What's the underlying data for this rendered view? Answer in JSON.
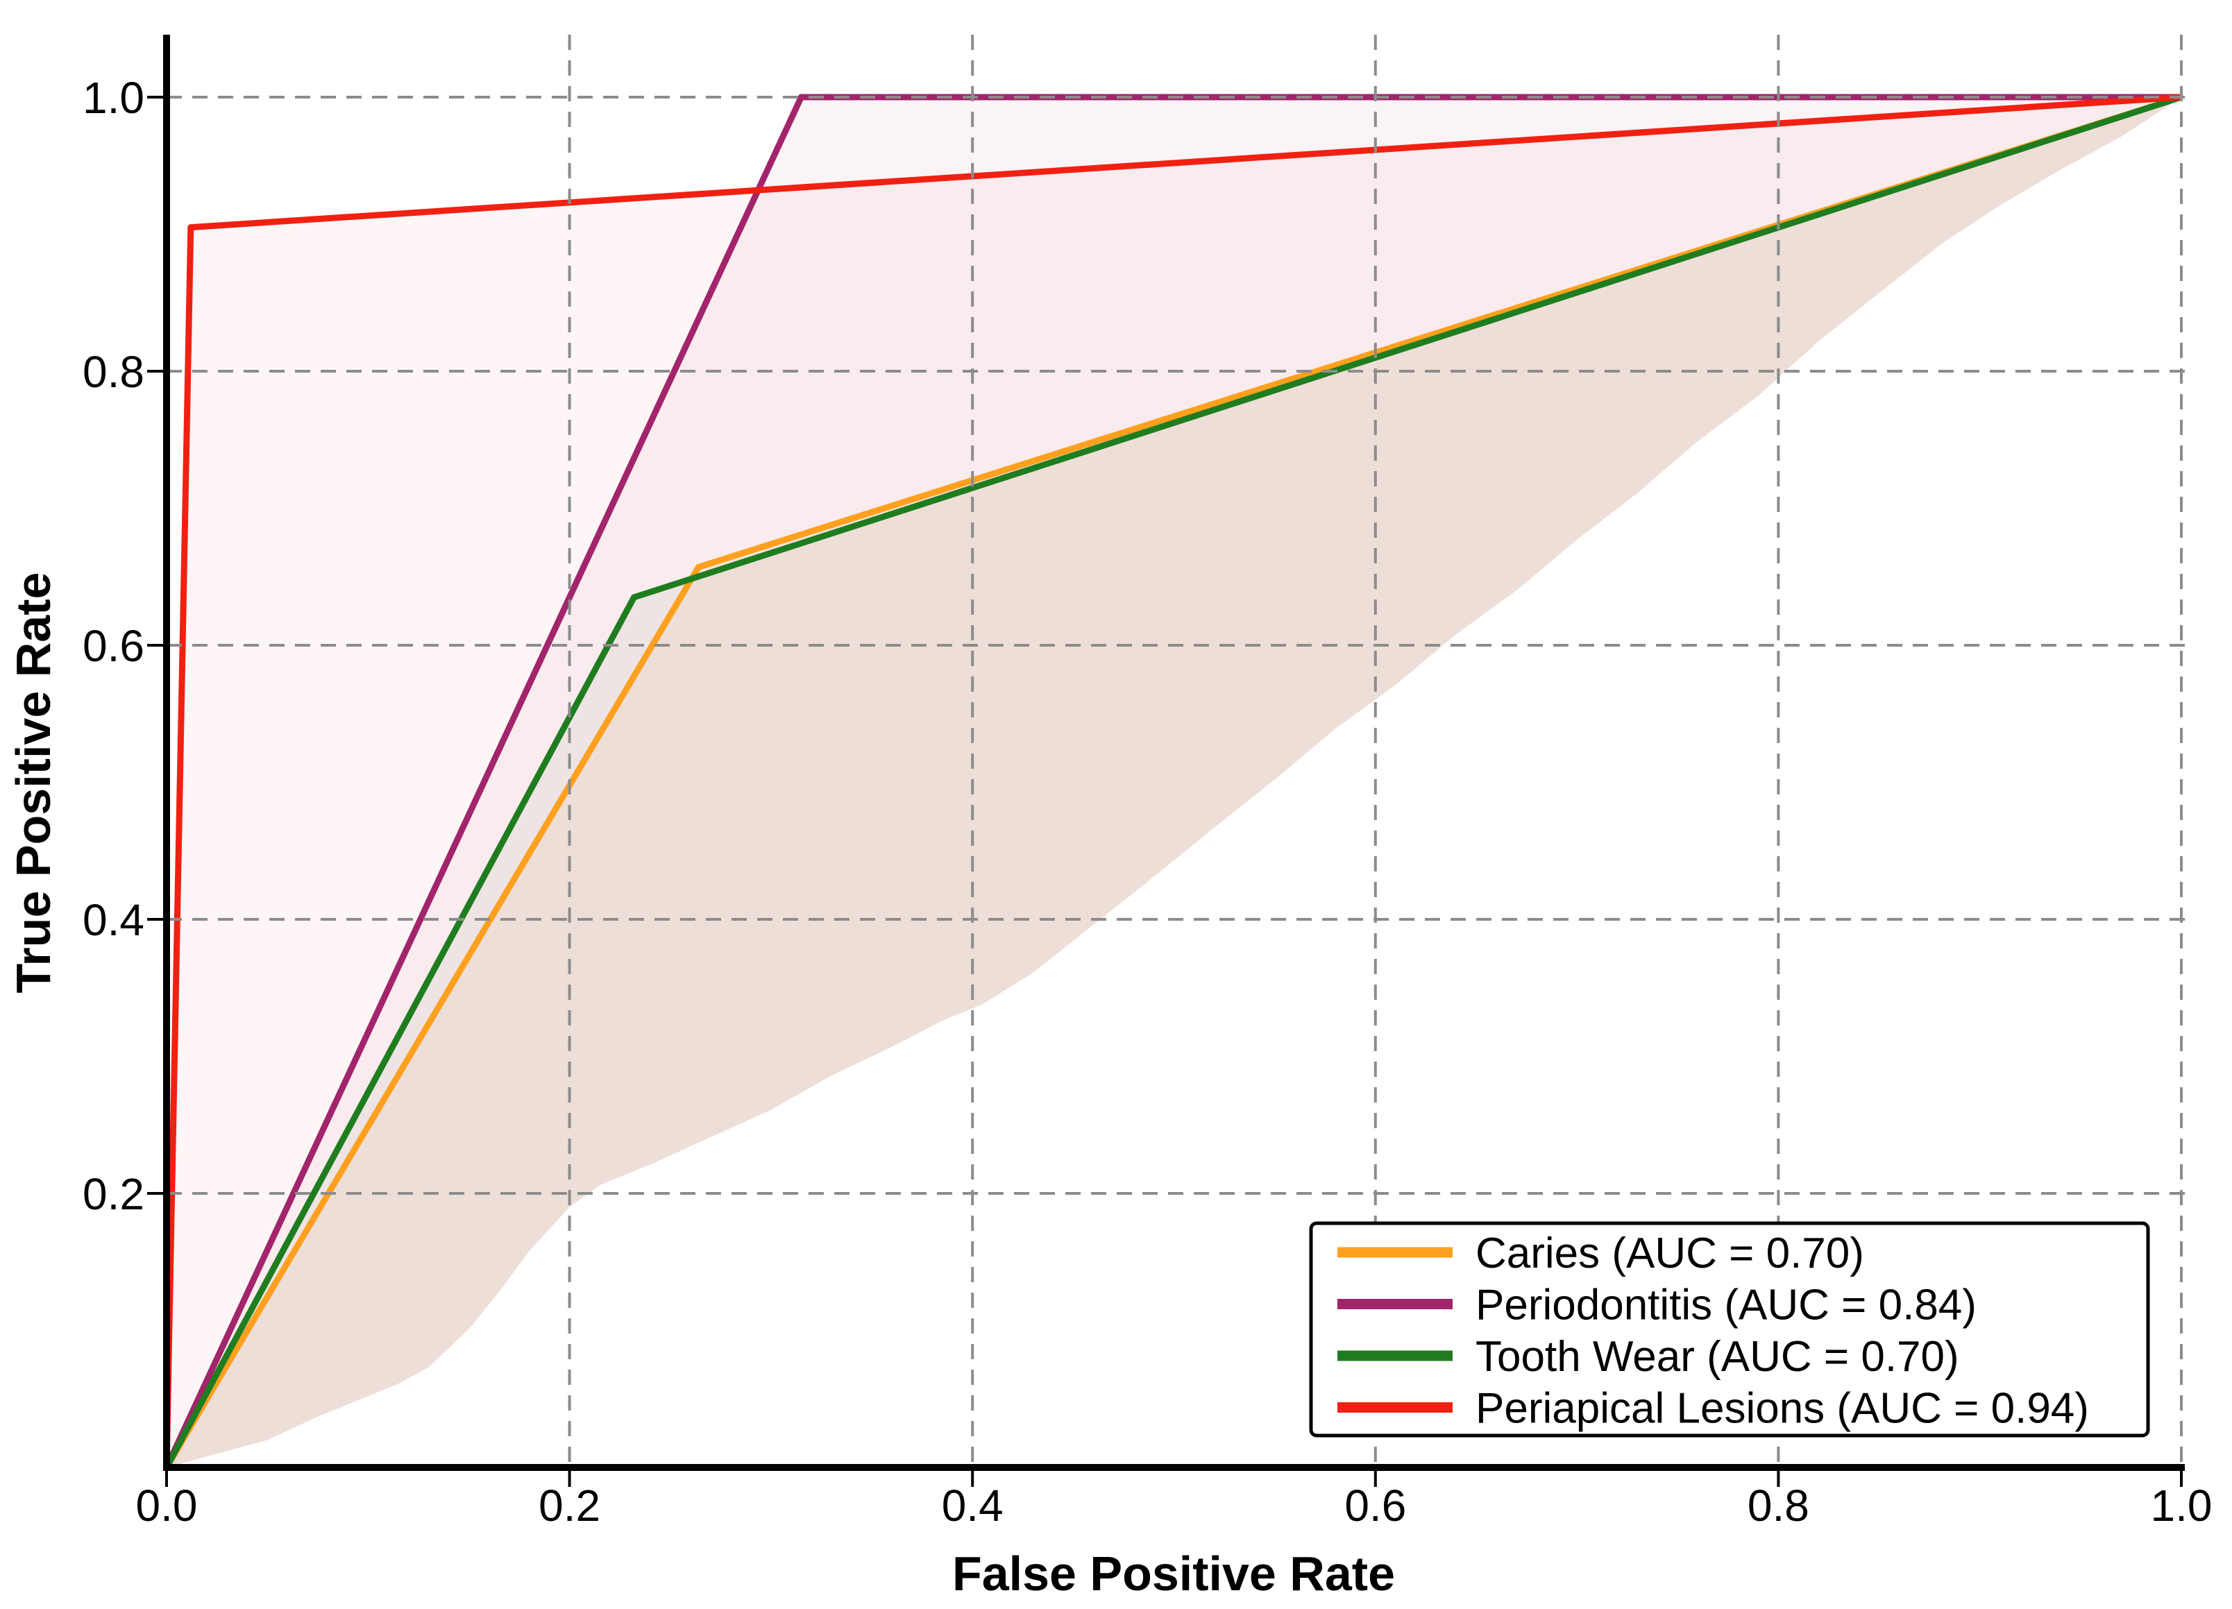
{
  "figure": {
    "background": "#ffffff",
    "title": ""
  },
  "chart_data": {
    "type": "line",
    "subtype": "roc-curve",
    "title": "",
    "xlabel": "False Positive Rate",
    "ylabel": "True Positive Rate",
    "xlim": [
      0.0,
      1.0
    ],
    "ylim": [
      0.0,
      1.045
    ],
    "xticks": [
      0.0,
      0.2,
      0.4,
      0.6,
      0.8,
      1.0
    ],
    "yticks": [
      0.2,
      0.4,
      0.6,
      0.8,
      1.0
    ],
    "xtick_labels": [
      "0.0",
      "0.2",
      "0.4",
      "0.6",
      "0.8",
      "1.0"
    ],
    "ytick_labels": [
      "0.2",
      "0.4",
      "0.6",
      "0.8",
      "1.0"
    ],
    "grid": {
      "show": true,
      "color": "#8c8c8c",
      "style": "dashed",
      "on_top": true
    },
    "axis_color": "#000000",
    "series": [
      {
        "name": "Caries",
        "auc": 0.7,
        "legend_label": "Caries (AUC = 0.70)",
        "color": "#FFA01E",
        "fill_opacity": 0.06,
        "points": [
          [
            0.0,
            0.0
          ],
          [
            0.264,
            0.657
          ],
          [
            1.0,
            1.0
          ]
        ]
      },
      {
        "name": "Periodontitis",
        "auc": 0.84,
        "legend_label": "Periodontitis (AUC = 0.84)",
        "color": "#A2256B",
        "fill_opacity": 0.05,
        "points": [
          [
            0.0,
            0.0
          ],
          [
            0.315,
            1.0
          ],
          [
            1.0,
            1.0
          ]
        ]
      },
      {
        "name": "Tooth Wear",
        "auc": 0.7,
        "legend_label": "Tooth Wear (AUC = 0.70)",
        "color": "#1F7D20",
        "fill_opacity": 0.05,
        "points": [
          [
            0.0,
            0.0
          ],
          [
            0.232,
            0.635
          ],
          [
            1.0,
            1.0
          ]
        ]
      },
      {
        "name": "Periapical Lesions",
        "auc": 0.94,
        "legend_label": "Periapical Lesions (AUC = 0.94)",
        "color": "#F02112",
        "fill_opacity": 0.04,
        "points": [
          [
            0.0,
            0.0
          ],
          [
            0.012,
            0.905
          ],
          [
            1.0,
            1.0
          ]
        ]
      }
    ],
    "band_lower_bound": [
      [
        0.0,
        0.0
      ],
      [
        0.025,
        0.01
      ],
      [
        0.05,
        0.02
      ],
      [
        0.075,
        0.037
      ],
      [
        0.1,
        0.052
      ],
      [
        0.115,
        0.061
      ],
      [
        0.13,
        0.073
      ],
      [
        0.15,
        0.101
      ],
      [
        0.165,
        0.128
      ],
      [
        0.18,
        0.158
      ],
      [
        0.2,
        0.19
      ],
      [
        0.215,
        0.206
      ],
      [
        0.24,
        0.221
      ],
      [
        0.27,
        0.241
      ],
      [
        0.3,
        0.261
      ],
      [
        0.33,
        0.286
      ],
      [
        0.36,
        0.307
      ],
      [
        0.385,
        0.326
      ],
      [
        0.405,
        0.338
      ],
      [
        0.43,
        0.361
      ],
      [
        0.46,
        0.396
      ],
      [
        0.49,
        0.431
      ],
      [
        0.52,
        0.467
      ],
      [
        0.55,
        0.502
      ],
      [
        0.58,
        0.539
      ],
      [
        0.61,
        0.571
      ],
      [
        0.64,
        0.608
      ],
      [
        0.67,
        0.64
      ],
      [
        0.7,
        0.677
      ],
      [
        0.73,
        0.711
      ],
      [
        0.76,
        0.749
      ],
      [
        0.79,
        0.782
      ],
      [
        0.82,
        0.822
      ],
      [
        0.85,
        0.857
      ],
      [
        0.882,
        0.894
      ],
      [
        0.91,
        0.921
      ],
      [
        0.94,
        0.947
      ],
      [
        0.97,
        0.971
      ],
      [
        1.0,
        1.0
      ]
    ],
    "legend": {
      "position": "lower right",
      "border_color": "#000000",
      "background": "#ffffff",
      "entries": [
        "Caries (AUC = 0.70)",
        "Periodontitis (AUC = 0.84)",
        "Tooth Wear (AUC = 0.70)",
        "Periapical Lesions (AUC = 0.94)"
      ]
    }
  }
}
